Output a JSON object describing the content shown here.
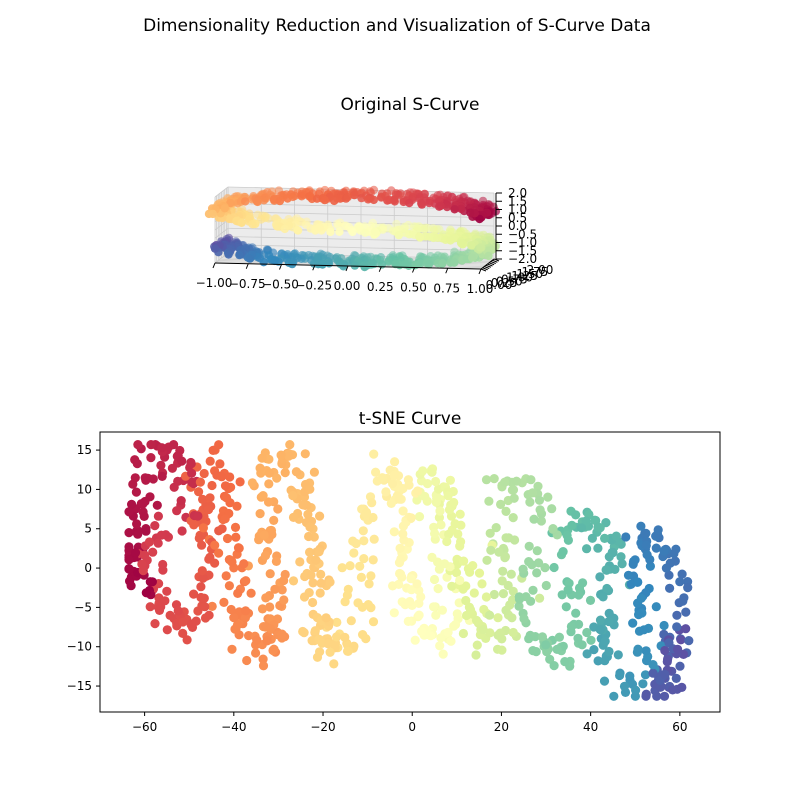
{
  "figure_title": "Dimensionality Reduction and Visualization of S-Curve Data",
  "colors": {
    "spectral_stops": [
      "#9e0142",
      "#d53e4f",
      "#f46d43",
      "#fdae61",
      "#fee08b",
      "#ffffbf",
      "#e6f598",
      "#abdda4",
      "#66c2a5",
      "#3288bd",
      "#5e4fa2"
    ],
    "pane": "#f2f2f2",
    "grid": "#cccccc"
  },
  "chart_data": [
    {
      "type": "scatter3d",
      "title": "Original S-Curve",
      "x_ticks": [
        "−1.00",
        "−0.75",
        "−0.50",
        "−0.25",
        "0.00",
        "0.25",
        "0.50",
        "0.75",
        "1.00"
      ],
      "y_ticks": [
        "0.00",
        "0.25",
        "0.50",
        "0.75",
        "1.00",
        "1.25",
        "1.50",
        "1.75",
        "2.00"
      ],
      "z_ticks": [
        "2.0",
        "1.5",
        "1.0",
        "0.5",
        "0.0",
        "−0.5",
        "−1.0",
        "−1.5",
        "−2.0"
      ],
      "xlim": [
        -1,
        1
      ],
      "ylim": [
        0,
        2
      ],
      "zlim": [
        -2,
        2
      ],
      "color_by": "position along curve t ∈ [−4.71, 4.71]"
    },
    {
      "type": "scatter",
      "title": "t-SNE Curve",
      "xlim": [
        -70,
        69
      ],
      "ylim": [
        -18.3,
        17.3
      ],
      "x_ticks": [
        "−60",
        "−40",
        "−20",
        "0",
        "20",
        "40",
        "60"
      ],
      "x_tick_values": [
        -60,
        -40,
        -20,
        0,
        20,
        40,
        60
      ],
      "y_ticks": [
        "15",
        "10",
        "5",
        "0",
        "−5",
        "−10",
        "−15"
      ],
      "y_tick_values": [
        15,
        10,
        5,
        0,
        -5,
        -10,
        -15
      ],
      "path": [
        [
          -58,
          -3
        ],
        [
          -63,
          -1
        ],
        [
          -63,
          4
        ],
        [
          -60,
          9
        ],
        [
          -61,
          13
        ],
        [
          -56,
          15
        ],
        [
          -52,
          14
        ],
        [
          -50,
          9
        ],
        [
          -55,
          5
        ],
        [
          -60,
          2
        ],
        [
          -58,
          -4
        ],
        [
          -53,
          -7
        ],
        [
          -48,
          -6
        ],
        [
          -46,
          -2
        ],
        [
          -47,
          4
        ],
        [
          -47,
          10
        ],
        [
          -44,
          13
        ],
        [
          -41,
          9
        ],
        [
          -42,
          3
        ],
        [
          -40,
          -2
        ],
        [
          -39,
          -7
        ],
        [
          -35,
          -10
        ],
        [
          -30,
          -9
        ],
        [
          -31,
          -4
        ],
        [
          -33,
          3
        ],
        [
          -33,
          9
        ],
        [
          -31,
          13
        ],
        [
          -26,
          14
        ],
        [
          -24,
          9
        ],
        [
          -23,
          3
        ],
        [
          -21,
          -2
        ],
        [
          -22,
          -7
        ],
        [
          -18,
          -10
        ],
        [
          -14,
          -11
        ],
        [
          -13,
          -6
        ],
        [
          -13,
          1
        ],
        [
          -10,
          6
        ],
        [
          -9,
          10
        ],
        [
          -6,
          12
        ],
        [
          -2,
          10
        ],
        [
          -3,
          4
        ],
        [
          -1,
          -2
        ],
        [
          1,
          -7
        ],
        [
          5,
          -10
        ],
        [
          9,
          -8
        ],
        [
          7,
          -3
        ],
        [
          5,
          3
        ],
        [
          4,
          9
        ],
        [
          3,
          12
        ],
        [
          8,
          10
        ],
        [
          11,
          4
        ],
        [
          13,
          -2
        ],
        [
          15,
          -8
        ],
        [
          18,
          -10
        ],
        [
          21,
          -9
        ],
        [
          22,
          -4
        ],
        [
          20,
          3
        ],
        [
          18,
          8
        ],
        [
          21,
          11
        ],
        [
          25,
          10
        ],
        [
          29,
          9
        ],
        [
          30,
          4
        ],
        [
          27,
          -1
        ],
        [
          26,
          -6
        ],
        [
          30,
          -10
        ],
        [
          34,
          -12
        ],
        [
          37,
          -8
        ],
        [
          36,
          -3
        ],
        [
          34,
          2
        ],
        [
          36,
          6
        ],
        [
          41,
          5
        ],
        [
          45,
          3
        ],
        [
          44,
          -3
        ],
        [
          42,
          -8
        ],
        [
          44,
          -12
        ],
        [
          46,
          -15
        ],
        [
          50,
          -15
        ],
        [
          52,
          -10
        ],
        [
          52,
          -5
        ],
        [
          50,
          1
        ],
        [
          52,
          4
        ],
        [
          56,
          3
        ],
        [
          59,
          0
        ],
        [
          60,
          -6
        ],
        [
          58,
          -12
        ],
        [
          54,
          -16
        ],
        [
          57,
          -14
        ],
        [
          60,
          -8
        ]
      ],
      "color_by": "position along curve (same as original S-curve)"
    }
  ]
}
